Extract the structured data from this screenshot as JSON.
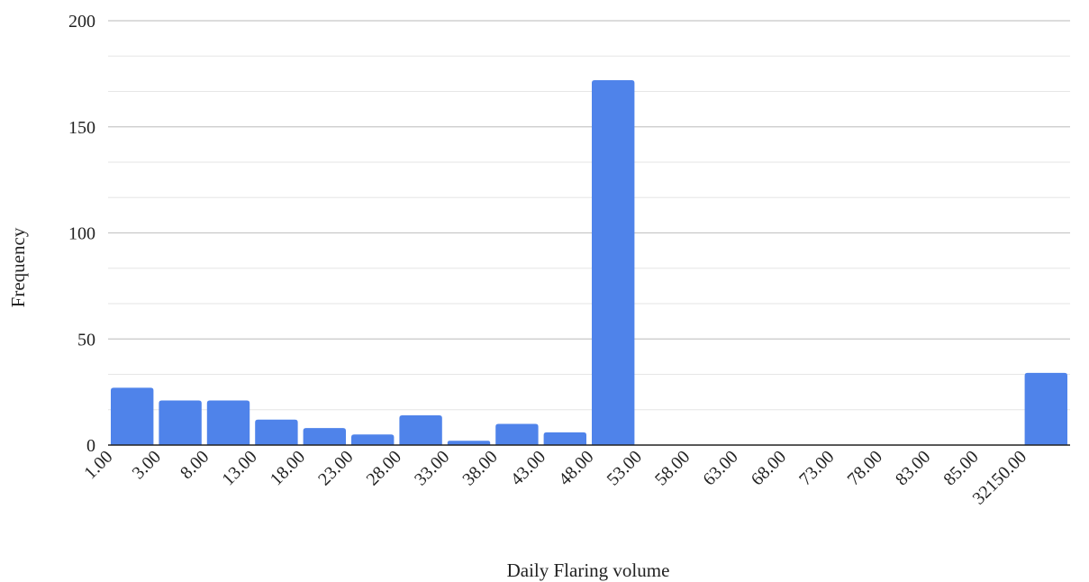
{
  "chart_data": {
    "type": "bar",
    "title": "",
    "xlabel": "Daily Flaring volume",
    "ylabel": "Frequency",
    "ylim": [
      0,
      200
    ],
    "yticks": [
      0,
      50,
      100,
      150,
      200
    ],
    "y_minor_step": 16.667,
    "grid": true,
    "legend": "none",
    "bar_color": "#4f83ea",
    "grid_color": "#c8c8c8",
    "minor_grid_color": "#e6e6e6",
    "axis_color": "#222222",
    "categories": [
      "1.00",
      "3.00",
      "8.00",
      "13.00",
      "18.00",
      "23.00",
      "28.00",
      "33.00",
      "38.00",
      "43.00",
      "48.00",
      "53.00",
      "58.00",
      "63.00",
      "68.00",
      "73.00",
      "78.00",
      "83.00",
      "85.00",
      "32150.00"
    ],
    "values": [
      27,
      21,
      21,
      12,
      8,
      5,
      14,
      2,
      10,
      6,
      172,
      0,
      0,
      0,
      0,
      0,
      0,
      0,
      0,
      34
    ]
  }
}
